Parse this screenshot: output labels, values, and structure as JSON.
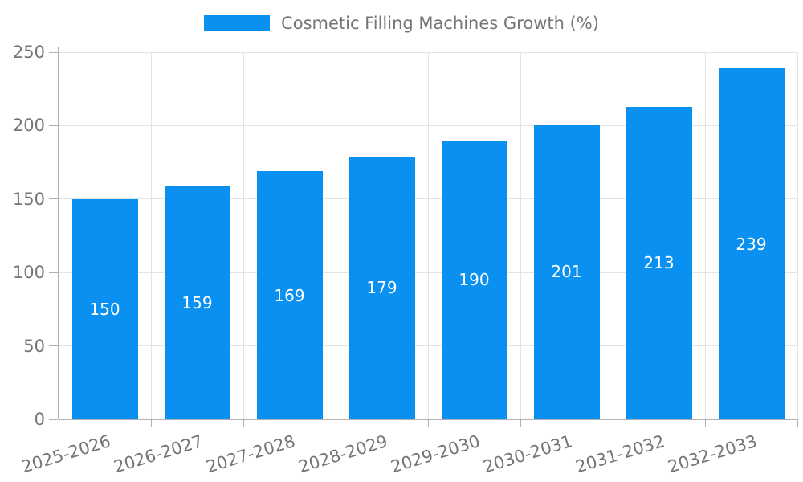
{
  "chart_data": {
    "type": "bar",
    "title": "Cosmetic Filling Machines Growth (%)",
    "categories": [
      "2025-2026",
      "2026-2027",
      "2027-2028",
      "2028-2029",
      "2029-2030",
      "2030-2031",
      "2031-2032",
      "2032-2033"
    ],
    "values": [
      150,
      159,
      169,
      179,
      190,
      201,
      213,
      239
    ],
    "xlabel": "",
    "ylabel": "",
    "ylim": [
      0,
      250
    ],
    "yticks": [
      0,
      50,
      100,
      150,
      200,
      250
    ],
    "grid": true,
    "legend_position": "top-center",
    "x_label_rotation_deg": -17,
    "colors": {
      "bar": "#0a90f0",
      "grid": "#e3e3e3",
      "axis": "#b0b0b0",
      "text": "#757575",
      "value_label": "#ffffff",
      "background": "#ffffff"
    }
  }
}
